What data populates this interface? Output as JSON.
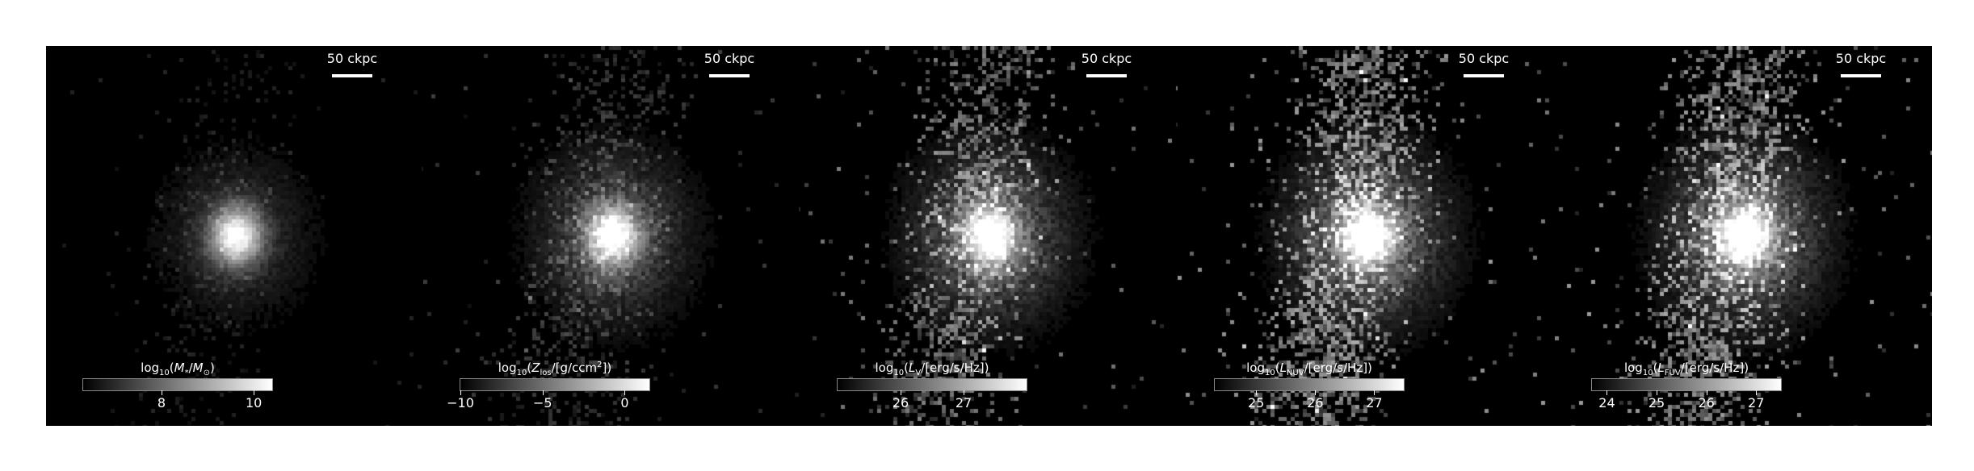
{
  "figure": {
    "scalebar_text": "50 ckpc",
    "panels": [
      {
        "label_html": "log<sub>10</sub>(<i>M</i><sub>*</sub>/<i>M</i><sub>⊙</sub>)",
        "cbar_range": [
          6.3,
          10.4
        ],
        "ticks": [
          {
            "value": 8,
            "label": "8"
          },
          {
            "value": 10,
            "label": "10"
          }
        ],
        "texture": {
          "core": 1.0,
          "halo": 0.25,
          "noise": 0.15,
          "sparse": 0.1
        }
      },
      {
        "label_html": "log<sub>10</sub>(<i>Z</i><sub>los</sub>/[g/ccm<sup>2</sup>])",
        "cbar_range": [
          -10,
          1.5
        ],
        "ticks": [
          {
            "value": -10,
            "label": "−10"
          },
          {
            "value": -5,
            "label": "−5"
          },
          {
            "value": 0,
            "label": "0"
          }
        ],
        "texture": {
          "core": 1.0,
          "halo": 0.45,
          "noise": 0.25,
          "sparse": 0.25
        }
      },
      {
        "label_html": "log<sub>10</sub>(<i>L</i><sub>V</sub>/[erg/s/Hz])",
        "cbar_range": [
          25.0,
          28.0
        ],
        "ticks": [
          {
            "value": 26,
            "label": "26"
          },
          {
            "value": 27,
            "label": "27"
          }
        ],
        "texture": {
          "core": 1.0,
          "halo": 0.6,
          "noise": 0.5,
          "sparse": 0.35
        }
      },
      {
        "label_html": "log<sub>10</sub>(<i>L</i><sub>NUV</sub>/[erg/s/Hz])",
        "cbar_range": [
          24.3,
          27.5
        ],
        "ticks": [
          {
            "value": 25,
            "label": "25"
          },
          {
            "value": 26,
            "label": "26"
          },
          {
            "value": 27,
            "label": "27"
          }
        ],
        "texture": {
          "core": 1.0,
          "halo": 0.7,
          "noise": 0.6,
          "sparse": 0.45
        }
      },
      {
        "label_html": "log<sub>10</sub>(<i>L</i><sub>FUV</sub>/[erg/s/Hz])",
        "cbar_range": [
          23.7,
          27.5
        ],
        "ticks": [
          {
            "value": 24,
            "label": "24"
          },
          {
            "value": 25,
            "label": "25"
          },
          {
            "value": 26,
            "label": "26"
          },
          {
            "value": 27,
            "label": "27"
          }
        ],
        "texture": {
          "core": 1.0,
          "halo": 0.7,
          "noise": 0.6,
          "sparse": 0.45
        }
      }
    ]
  }
}
